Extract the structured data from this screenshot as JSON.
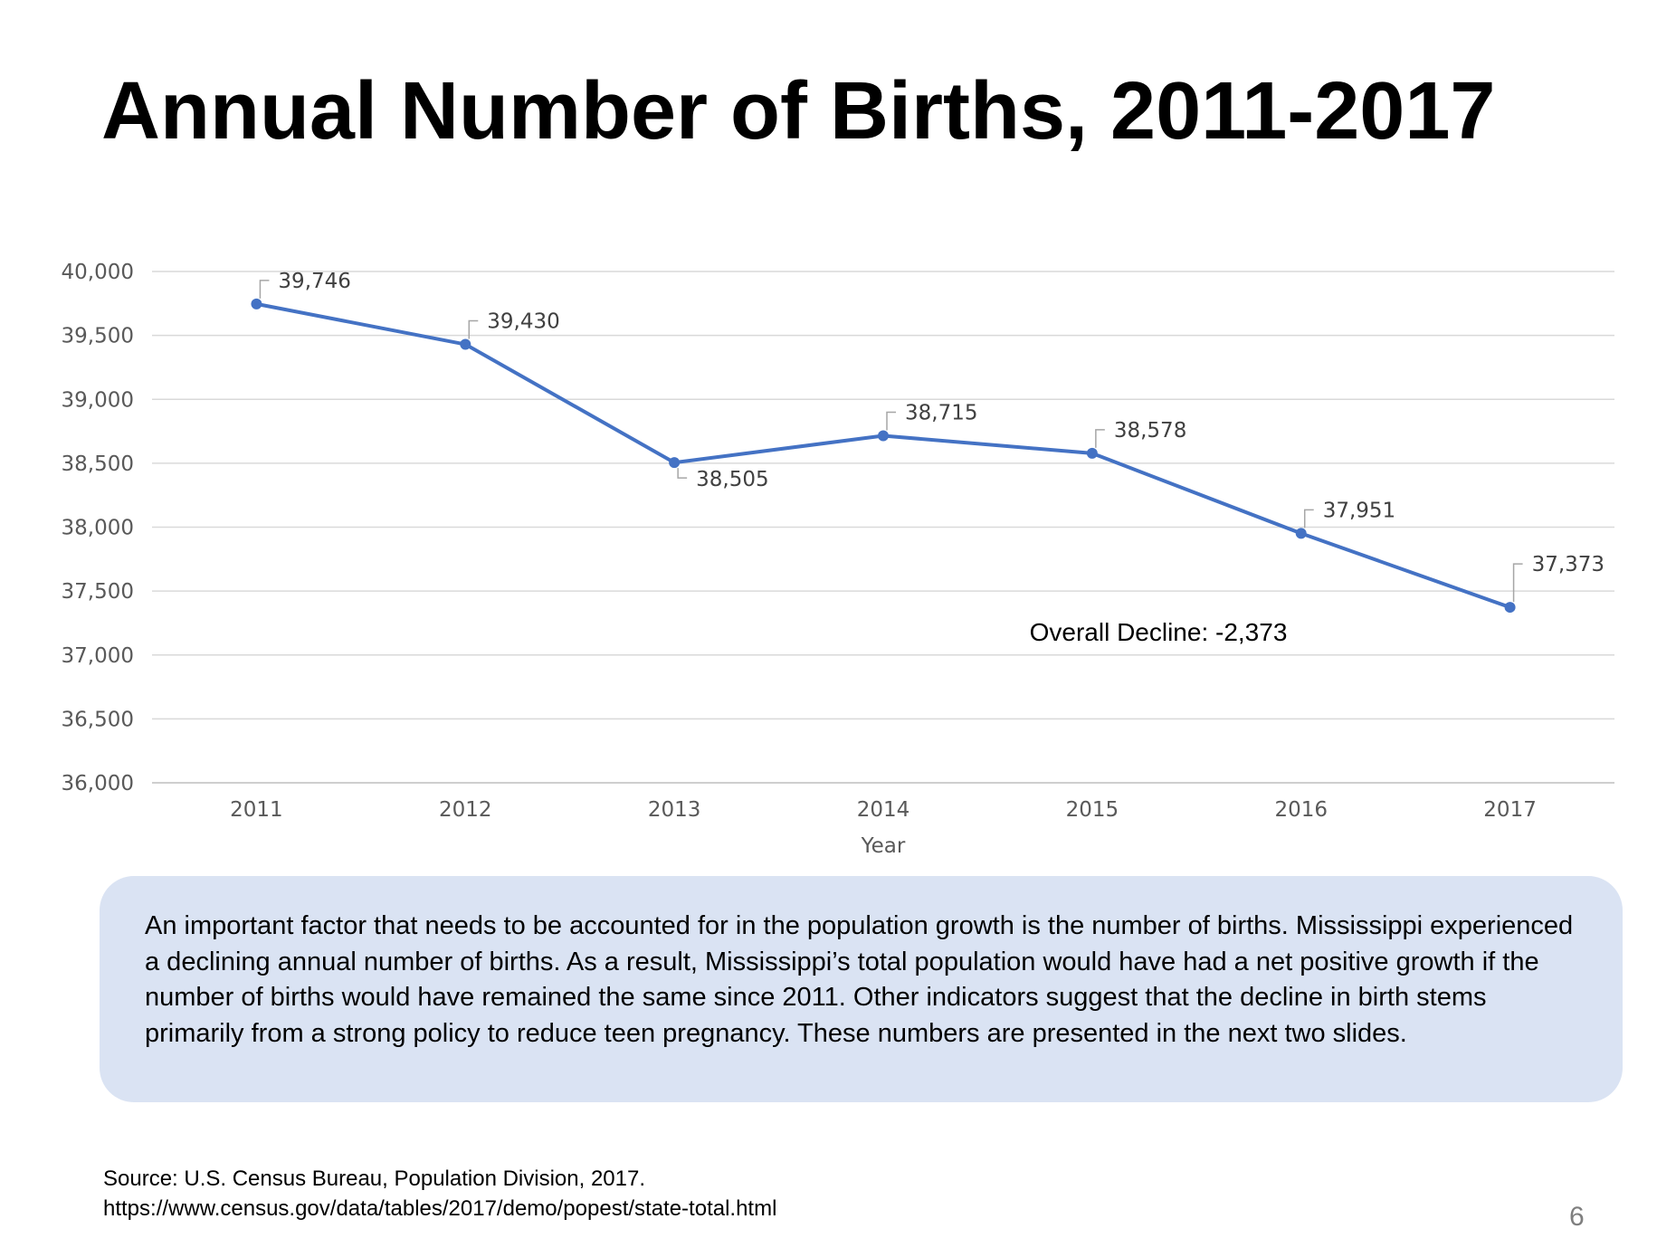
{
  "slide": {
    "title": "Annual Number of Births, 2011-2017",
    "summary": "An important factor that needs to be accounted for in the population growth is the number of births. Mississippi experienced a declining annual number of births. As a result, Mississippi’s total population would have had a net positive growth if the number of births would have remained the same since 2011. Other indicators suggest that the decline in birth stems primarily from a strong policy to reduce teen pregnancy. These numbers are presented in the next two slides.",
    "source_line1": "Source: U.S. Census Bureau, Population Division, 2017.",
    "source_line2": "https://www.census.gov/data/tables/2017/demo/popest/state-total.html",
    "page_number": "6"
  },
  "chart_data": {
    "type": "line",
    "title": "",
    "xlabel": "Year",
    "ylabel": "",
    "categories": [
      "2011",
      "2012",
      "2013",
      "2014",
      "2015",
      "2016",
      "2017"
    ],
    "series": [
      {
        "values": [
          39746,
          39430,
          38505,
          38715,
          38578,
          37951,
          37373
        ]
      }
    ],
    "data_labels": [
      "39,746",
      "39,430",
      "38,505",
      "38,715",
      "38,578",
      "37,951",
      "37,373"
    ],
    "ylim": [
      36000,
      40000
    ],
    "yticks": [
      36000,
      36500,
      37000,
      37500,
      38000,
      38500,
      39000,
      39500,
      40000
    ],
    "ytick_labels": [
      "36,000",
      "36,500",
      "37,000",
      "37,500",
      "38,000",
      "38,500",
      "39,000",
      "39,500",
      "40,000"
    ],
    "grid": true,
    "legend": "none",
    "line_color": "#4472c4",
    "annotation": "Overall Decline: -2,373"
  }
}
